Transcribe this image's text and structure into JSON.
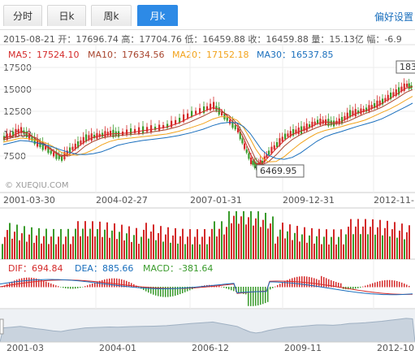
{
  "tabs": [
    {
      "label": "分时",
      "active": false
    },
    {
      "label": "日k",
      "active": false
    },
    {
      "label": "周k",
      "active": false
    },
    {
      "label": "月k",
      "active": true
    }
  ],
  "settings_label": "偏好设置",
  "info_line": "2015-08-21 开：17696.74 高：17704.76 低：16459.88 收：16459.88 量：15.13亿 幅：-6.9",
  "ma": [
    {
      "label": "MA5：17524.10",
      "color": "#d42a2a"
    },
    {
      "label": "MA10：17634.56",
      "color": "#a8452e"
    },
    {
      "label": "MA20：17152.18",
      "color": "#f2a31c"
    },
    {
      "label": "MA30：16537.85",
      "color": "#1a6fbd"
    }
  ],
  "y_ticks": [
    "17500",
    "15000",
    "12500",
    "10000",
    "7500"
  ],
  "watermark": "© XUEQIU.COM",
  "low_marker": "6469.95",
  "high_marker": "183",
  "x_dates": [
    "2001-03-30",
    "2004-02-27",
    "2007-01-31",
    "2009-12-31",
    "2012-11-"
  ],
  "macd": [
    {
      "label": "DIF：694.84",
      "color": "#d42a2a"
    },
    {
      "label": "DEA：885.66",
      "color": "#1a6fbd"
    },
    {
      "label": "MACD：-381.64",
      "color": "#3a9b2c"
    }
  ],
  "nav_dates": [
    "2001-03",
    "2004-01",
    "2006-12",
    "2009-11",
    "2012-10"
  ],
  "chart_data": {
    "type": "candlestick",
    "y_axis_ticks": [
      17500,
      15000,
      12500,
      10000,
      7500
    ],
    "x_axis_labels": [
      "2001-03-30",
      "2004-02-27",
      "2007-01-31",
      "2009-12-31",
      "2012-11-"
    ],
    "annotations": [
      {
        "label": "6469.95",
        "kind": "low"
      },
      {
        "label": "183",
        "kind": "high"
      }
    ],
    "last_bar": {
      "date": "2015-08-21",
      "open": 17696.74,
      "high": 17704.76,
      "low": 16459.88,
      "close": 16459.88,
      "volume": "15.13亿"
    }
  }
}
